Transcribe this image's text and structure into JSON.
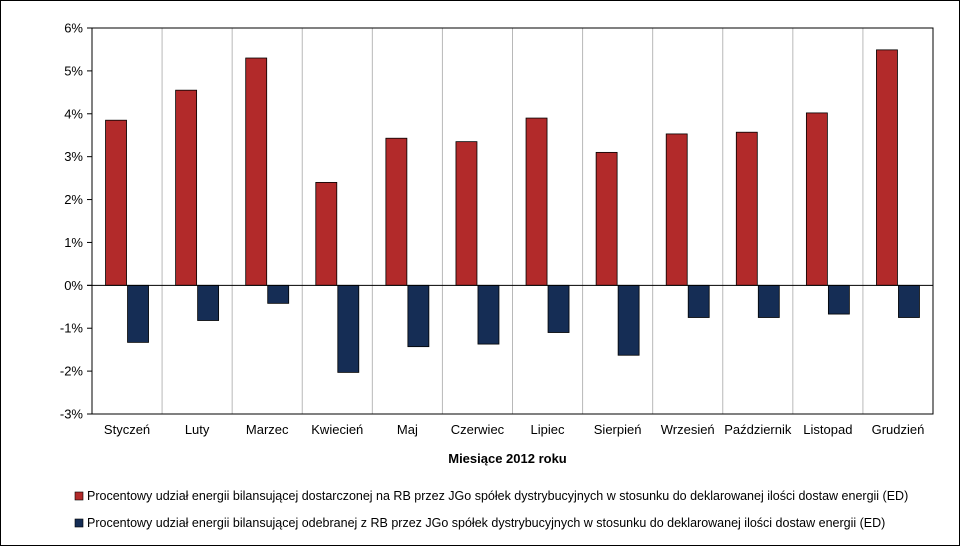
{
  "chart_data": {
    "type": "bar",
    "title": "",
    "xlabel": "Miesiące 2012 roku",
    "ylabel": "",
    "ylim": [
      -3,
      6
    ],
    "yticks": [
      -3,
      -2,
      -1,
      0,
      1,
      2,
      3,
      4,
      5,
      6
    ],
    "ytick_labels": [
      "-3%",
      "-2%",
      "-1%",
      "0%",
      "1%",
      "2%",
      "3%",
      "4%",
      "5%",
      "6%"
    ],
    "grid": "vertical category separators",
    "legend_position": "bottom",
    "categories": [
      "Styczeń",
      "Luty",
      "Marzec",
      "Kwiecień",
      "Maj",
      "Czerwiec",
      "Lipiec",
      "Sierpień",
      "Wrzesień",
      "Październik",
      "Listopad",
      "Grudzień"
    ],
    "series": [
      {
        "name": "Procentowy udział energii bilansującej dostarczonej na RB przez JGo spółek dystrybucyjnych w stosunku do deklarowanej ilości dostaw energii (ED)",
        "color": "#b22a2a",
        "values": [
          3.85,
          4.55,
          5.3,
          2.4,
          3.43,
          3.35,
          3.9,
          3.1,
          3.53,
          3.57,
          4.02,
          5.49
        ]
      },
      {
        "name": "Procentowy udział energii bilansującej odebranej z RB przez JGo spółek dystrybucyjnych w stosunku do deklarowanej ilości dostaw energii (ED)",
        "color": "#152d55",
        "values": [
          -1.33,
          -0.82,
          -0.42,
          -2.03,
          -1.43,
          -1.37,
          -1.1,
          -1.63,
          -0.75,
          -0.75,
          -0.67,
          -0.75
        ]
      }
    ]
  }
}
